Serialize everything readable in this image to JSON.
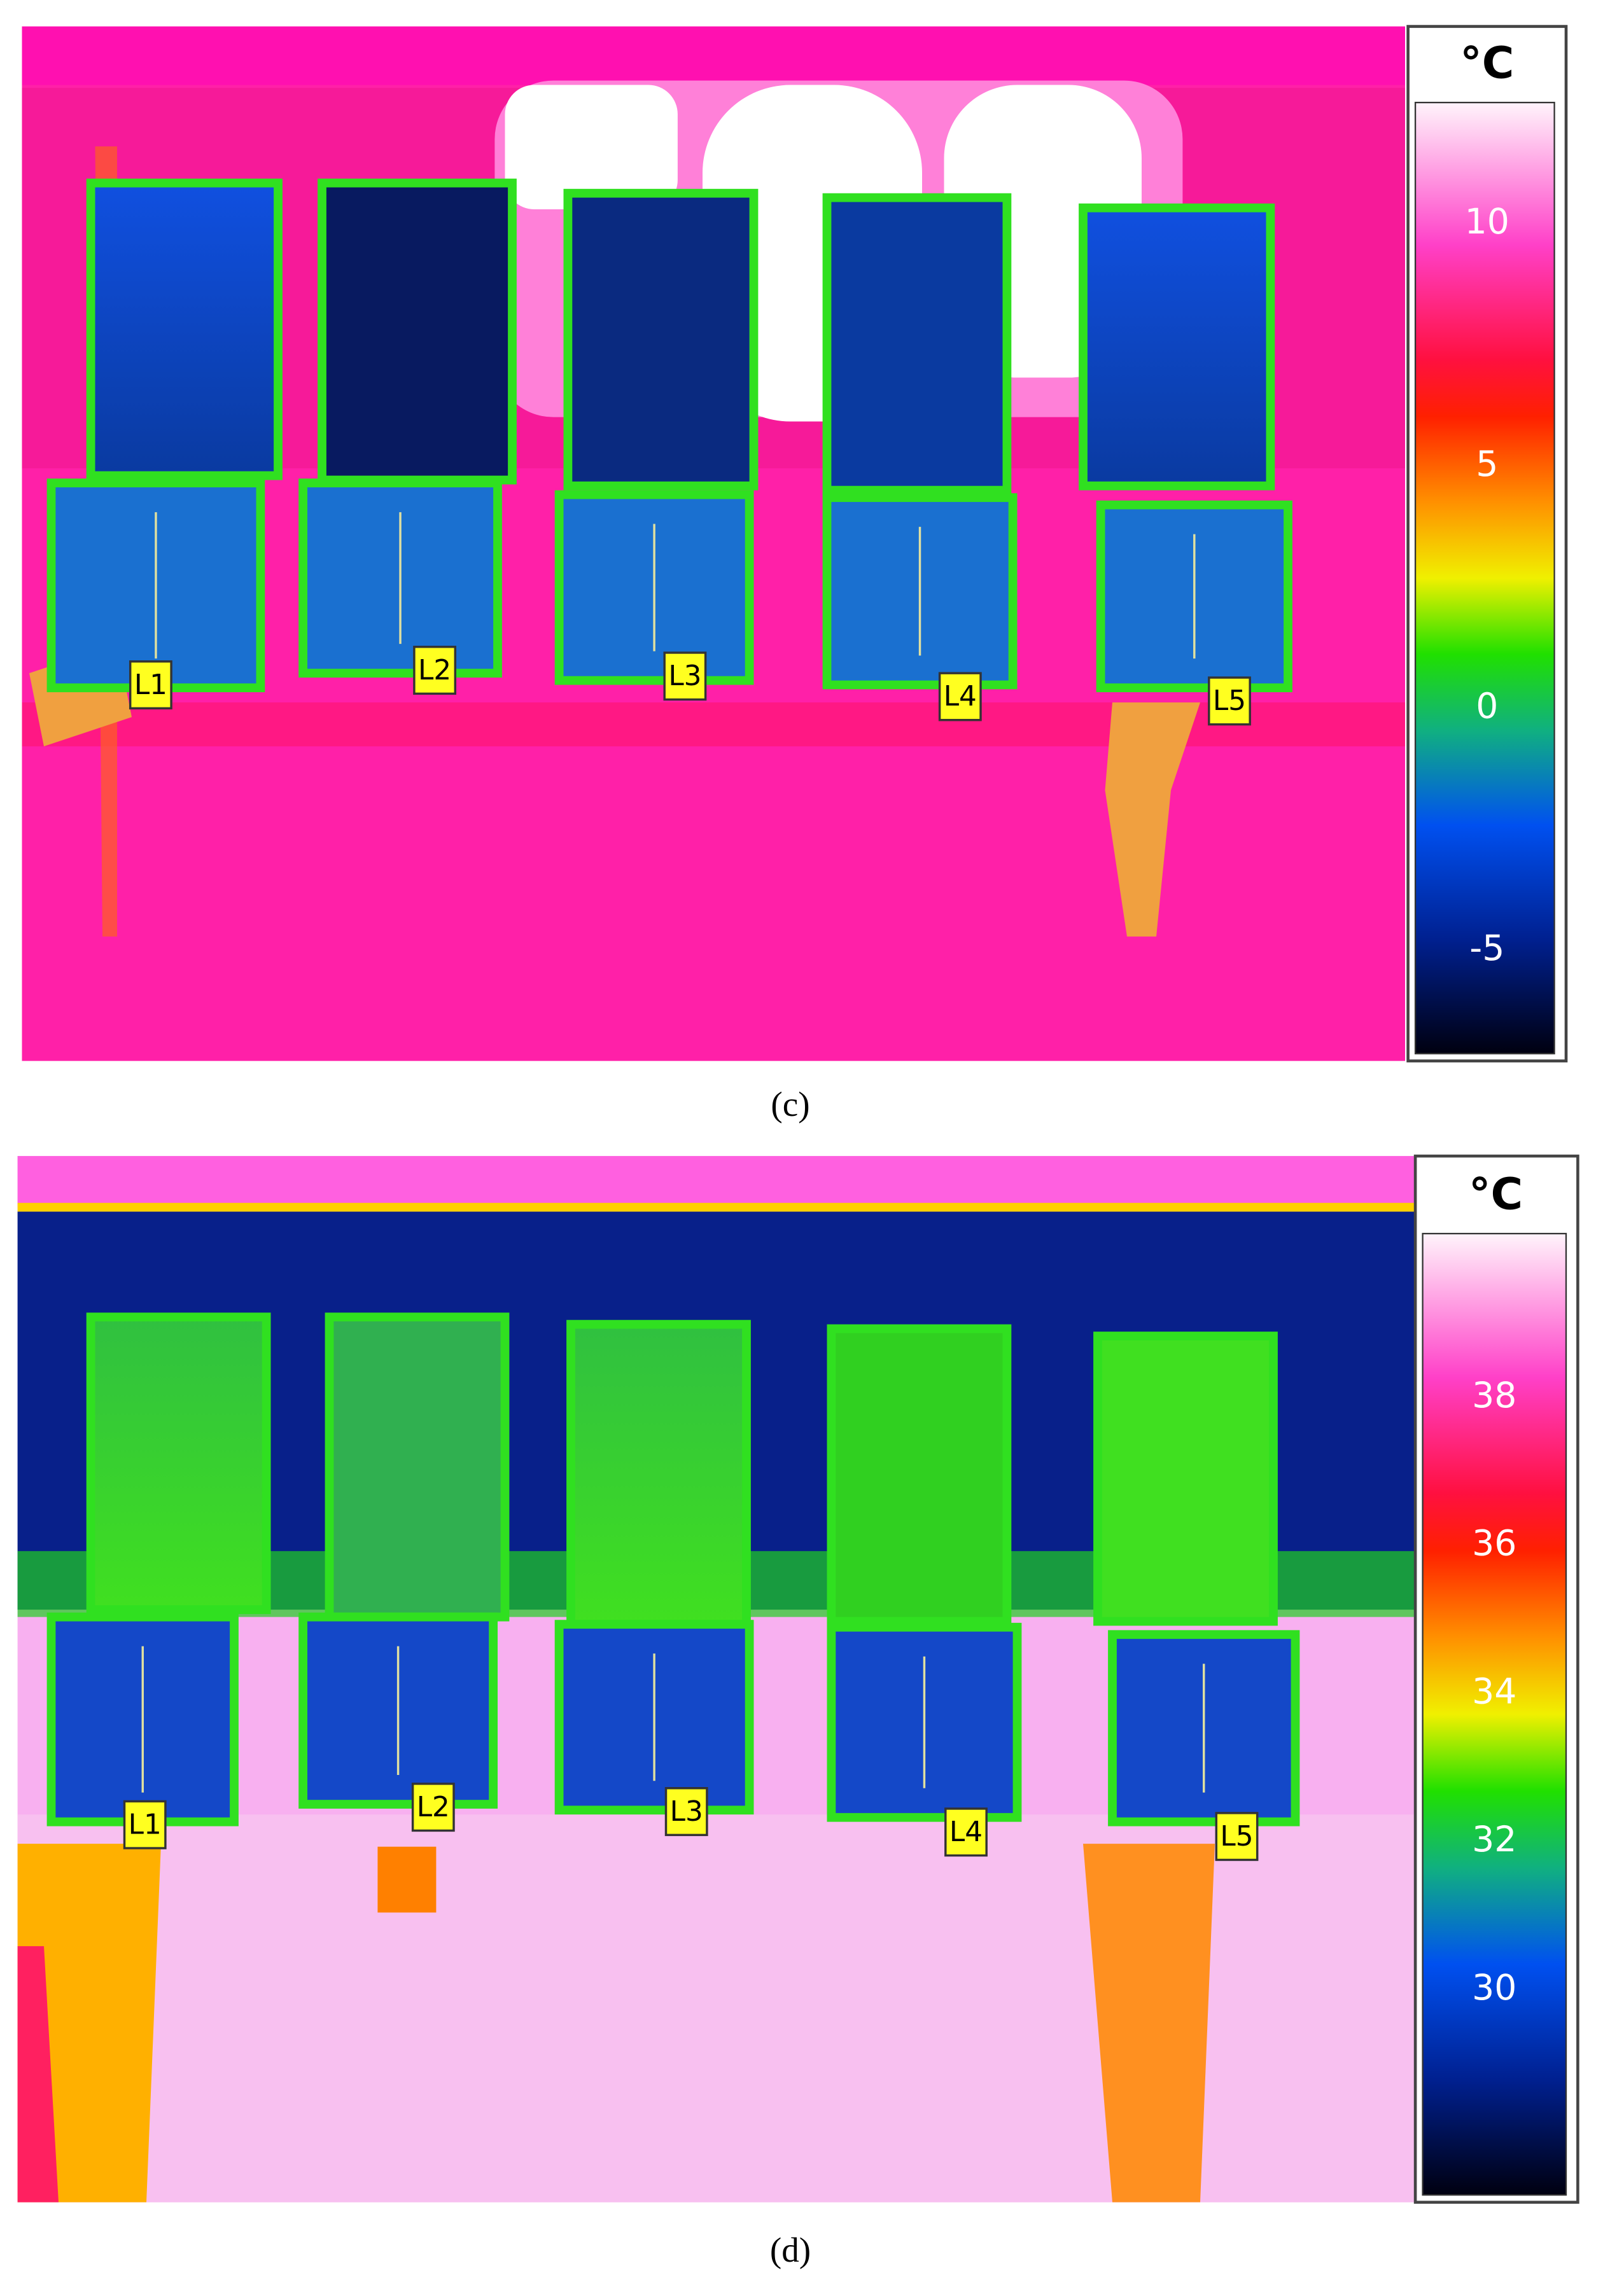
{
  "panels": [
    {
      "label": "(c)",
      "unit": "°C",
      "scale_ticks": [
        10,
        5,
        0,
        -5
      ],
      "markers": [
        "L1",
        "L2",
        "L3",
        "L4",
        "L5"
      ]
    },
    {
      "label": "(d)",
      "unit": "°C",
      "scale_ticks": [
        38,
        36,
        34,
        32,
        30
      ],
      "markers": [
        "L1",
        "L2",
        "L3",
        "L4",
        "L5"
      ]
    }
  ]
}
